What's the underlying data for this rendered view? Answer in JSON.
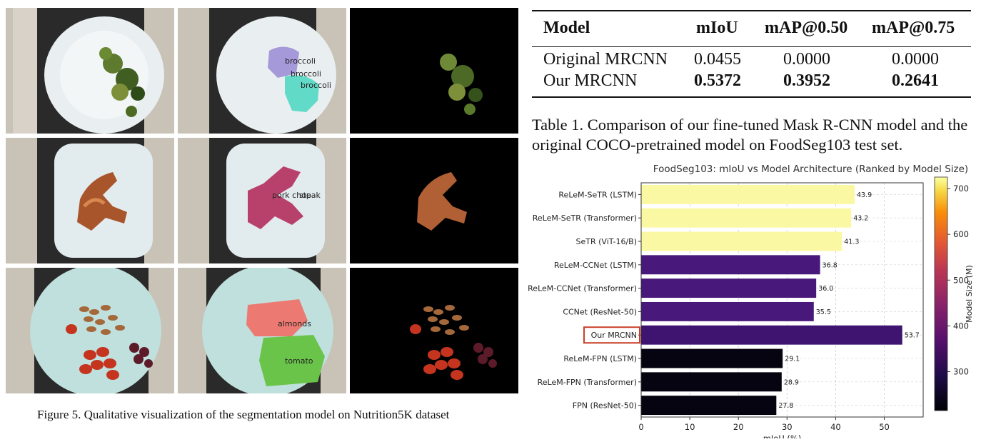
{
  "figure": {
    "caption": "Figure 5. Qualitative visualization of the segmentation model on Nutrition5K dataset",
    "rows": [
      {
        "overlay_labels": [
          "broccoli",
          "broccoli",
          "broccoli"
        ]
      },
      {
        "overlay_labels": [
          "pork chop",
          "steak"
        ]
      },
      {
        "overlay_labels": [
          "almonds",
          "tomato"
        ]
      }
    ]
  },
  "table": {
    "headers": [
      "Model",
      "mIoU",
      "mAP@0.50",
      "mAP@0.75"
    ],
    "rows": [
      {
        "model": "Original MRCNN",
        "miou": "0.0455",
        "map50": "0.0000",
        "map75": "0.0000",
        "bold": false
      },
      {
        "model": "Our MRCNN",
        "miou": "0.5372",
        "map50": "0.3952",
        "map75": "0.2641",
        "bold": true
      }
    ],
    "caption": "Table 1. Comparison of our fine-tuned Mask R-CNN model and the original COCO-pretrained model on FoodSeg103 test set."
  },
  "chart_data": {
    "type": "bar",
    "orientation": "horizontal",
    "title": "FoodSeg103: mIoU vs Model Architecture (Ranked by Model Size)",
    "xlabel": "mIoU (%)",
    "ylabel": "",
    "xlim": [
      0,
      58
    ],
    "xticks": [
      0,
      10,
      20,
      30,
      40,
      50
    ],
    "grid": true,
    "highlight": "Our MRCNN",
    "highlight_color": "#c8402a",
    "categories": [
      "ReLeM-SeTR (LSTM)",
      "ReLeM-SeTR (Transformer)",
      "SeTR (ViT-16/B)",
      "ReLeM-CCNet (LSTM)",
      "ReLeM-CCNet (Transformer)",
      "CCNet (ResNet-50)",
      "Our MRCNN",
      "ReLeM-FPN (LSTM)",
      "ReLeM-FPN (Transformer)",
      "FPN (ResNet-50)"
    ],
    "values": [
      43.9,
      43.2,
      41.3,
      36.8,
      36.0,
      35.5,
      53.7,
      29.1,
      28.9,
      27.8
    ],
    "value_labels": [
      "43.9",
      "43.2",
      "41.3",
      "36.8",
      "36.0",
      "35.5",
      "53.7",
      "29.1",
      "28.9",
      "27.8"
    ],
    "bar_colors": [
      "#fbf8a3",
      "#fbf8a3",
      "#fbf8a3",
      "#48187a",
      "#48187a",
      "#48187a",
      "#3f1470",
      "#050410",
      "#050410",
      "#050410"
    ],
    "colorbar": {
      "label": "Model Size (M)",
      "range": [
        215,
        725
      ],
      "ticks": [
        300,
        400,
        500,
        600,
        700
      ],
      "colormap": "inferno"
    }
  }
}
